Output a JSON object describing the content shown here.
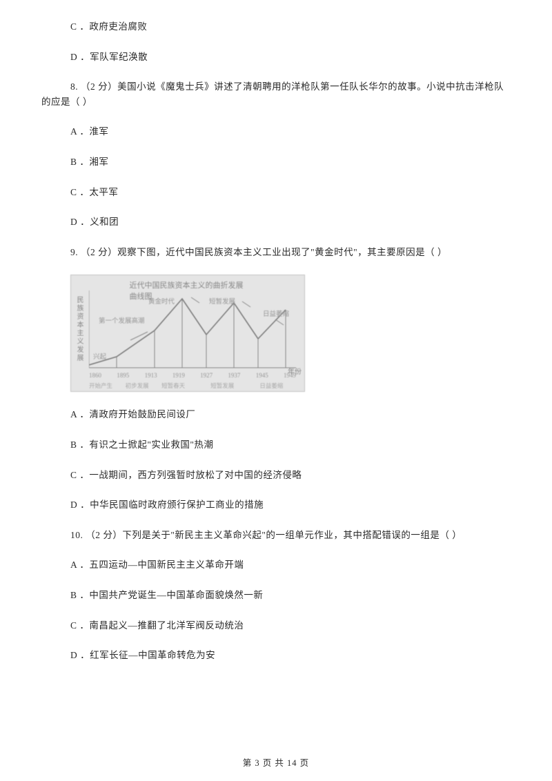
{
  "opts_prev": {
    "c": "C ．政府吏治腐败",
    "d": "D ．军队军纪涣散"
  },
  "q8": {
    "stem": "8.   （2 分）美国小说《魔鬼士兵》讲述了清朝聘用的洋枪队第一任队长华尔的故事。小说中抗击洋枪队的应是（     ）",
    "a": "A ．淮军",
    "b": "B ．湘军",
    "c": "C ．太平军",
    "d": "D ．义和团"
  },
  "q9": {
    "stem": "9.   （2 分）观察下图，近代中国民族资本主义工业出现了\"黄金时代\"，其主要原因是（     ）",
    "a": "A ．清政府开始鼓励民间设厂",
    "b": "B ．有识之士掀起\"实业救国\"热潮",
    "c": "C ．一战期间，西方列强暂时放松了对中国的经济侵略",
    "d": "D ．中华民国临时政府颁行保护工商业的措施"
  },
  "q10": {
    "stem": "10.   （2 分）下列是关于\"新民主主义革命兴起\"的一组单元作业，其中搭配错误的一组是（     ）",
    "a": "A ．五四运动—中国新民主主义革命开端",
    "b": "B ．中国共产党诞生—中国革命面貌焕然一新",
    "c": "C ．南昌起义—推翻了北洋军阀反动统治",
    "d": "D ．红军长征—中国革命转危为安"
  },
  "chart": {
    "title": "近代中国民族资本主义的曲折发展曲线图",
    "ylabel": "民族资本主义发展",
    "xlabel": "年份",
    "xticks": [
      "1860",
      "1895",
      "1913",
      "1919",
      "1927",
      "1937",
      "1945",
      "1949"
    ],
    "bottom": [
      "开始产生",
      "初步发展",
      "短暂春天",
      "",
      "短暂发展",
      "",
      "日益萎缩",
      ""
    ],
    "annot_peak1": "第一个发展高潮",
    "annot_golden": "黄金时代",
    "annot_short": "短暂发展",
    "annot_decline": "日益萎缩",
    "annot_start": "兴起",
    "line_color": "#7a7a7a",
    "axis_color": "#8a8a8a",
    "points": [
      {
        "x": 0,
        "y": 108
      },
      {
        "x": 40,
        "y": 96
      },
      {
        "x": 95,
        "y": 58
      },
      {
        "x": 135,
        "y": 12
      },
      {
        "x": 170,
        "y": 64
      },
      {
        "x": 210,
        "y": 18
      },
      {
        "x": 245,
        "y": 70
      },
      {
        "x": 285,
        "y": 28
      }
    ],
    "verticals": [
      40,
      95,
      135,
      170,
      210,
      245,
      285
    ]
  },
  "footer": "第 3 页 共 14 页"
}
